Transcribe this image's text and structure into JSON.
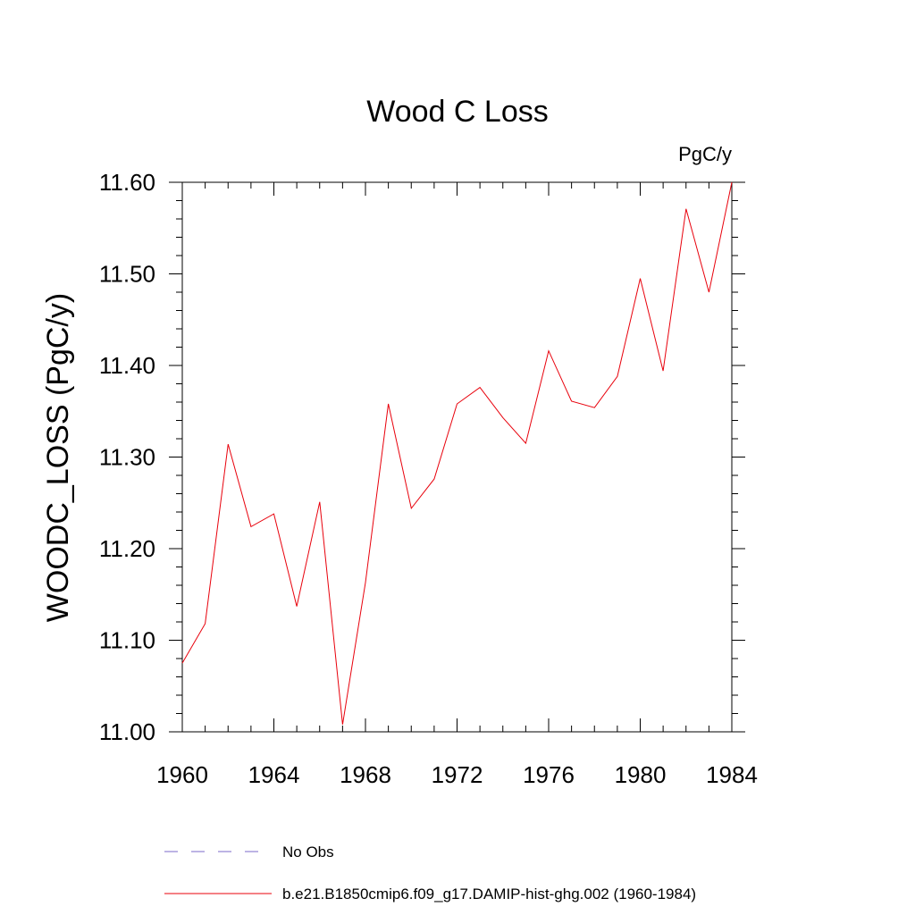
{
  "chart_data": {
    "type": "line",
    "title": "Wood C Loss",
    "units": "PgC/y",
    "ylabel": "WOODC_LOSS  (PgC/y)",
    "xlabel": "",
    "xlim": [
      1960,
      1984
    ],
    "ylim": [
      11.0,
      11.6
    ],
    "x_ticks": [
      1960,
      1964,
      1968,
      1972,
      1976,
      1980,
      1984
    ],
    "y_ticks": [
      "11.00",
      "11.10",
      "11.20",
      "11.30",
      "11.40",
      "11.50",
      "11.60"
    ],
    "grid": false,
    "legend_position": "bottom",
    "x": [
      1960,
      1961,
      1962,
      1963,
      1964,
      1965,
      1966,
      1967,
      1968,
      1969,
      1970,
      1971,
      1972,
      1973,
      1974,
      1975,
      1976,
      1977,
      1978,
      1979,
      1980,
      1981,
      1982,
      1983,
      1984
    ],
    "series": [
      {
        "name": "b.e21.B1850cmip6.f09_g17.DAMIP-hist-ghg.002 (1960-1984)",
        "color": "#e8000b",
        "style": "solid",
        "values": [
          11.075,
          11.118,
          11.314,
          11.224,
          11.238,
          11.137,
          11.251,
          11.008,
          11.163,
          11.358,
          11.244,
          11.276,
          11.358,
          11.376,
          11.343,
          11.315,
          11.416,
          11.361,
          11.354,
          11.388,
          11.495,
          11.394,
          11.571,
          11.48,
          11.6
        ]
      }
    ],
    "legend": [
      {
        "label": "No Obs",
        "color": "#7b68c9",
        "style": "dashed"
      },
      {
        "label": "b.e21.B1850cmip6.f09_g17.DAMIP-hist-ghg.002 (1960-1984)",
        "color": "#e8000b",
        "style": "solid"
      }
    ]
  }
}
